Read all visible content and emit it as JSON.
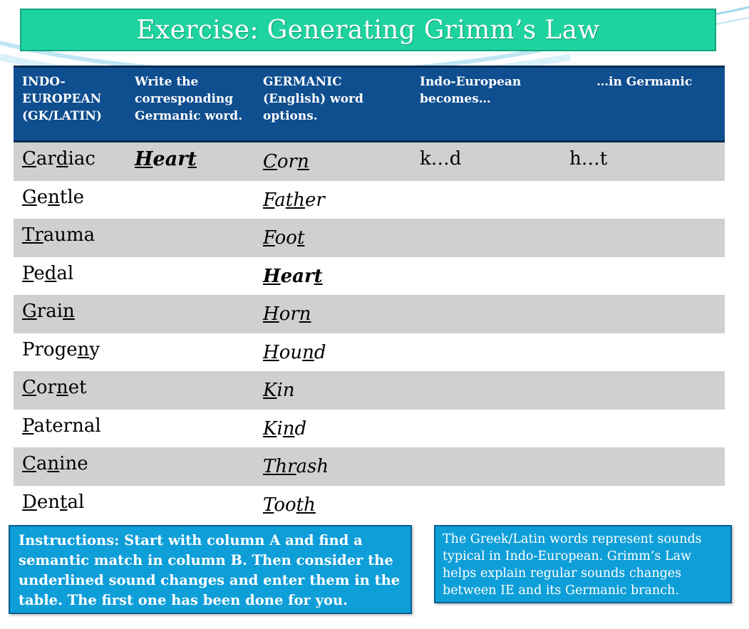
{
  "title": "Exercise: Generating Grimm’s Law",
  "headers": [
    "INDO-\nEUROPEAN\n(GK/LATIN)",
    "Write the\ncorresponding\nGermanic word.",
    "GERMANIC\n(English) word\noptions.",
    "Indo-European\nbecomes…",
    "…in Germanic"
  ],
  "rows": [
    {
      "ie": [
        [
          "C",
          1
        ],
        [
          "ar",
          0
        ],
        [
          "d",
          1
        ],
        [
          "iac",
          0
        ]
      ],
      "answer": [
        [
          "H",
          1
        ],
        [
          "ear",
          0
        ],
        [
          "t",
          1
        ]
      ],
      "option": [
        [
          "C",
          1
        ],
        [
          "or",
          0
        ],
        [
          "n",
          1
        ]
      ],
      "option_bold": false,
      "ie_becomes": "k…d",
      "in_germanic": "h…t"
    },
    {
      "ie": [
        [
          "G",
          1
        ],
        [
          "e",
          0
        ],
        [
          "n",
          1
        ],
        [
          "tle",
          0
        ]
      ],
      "answer": [],
      "option": [
        [
          "F",
          1
        ],
        [
          "a",
          0
        ],
        [
          "th",
          1
        ],
        [
          "er",
          0
        ]
      ],
      "option_bold": false,
      "ie_becomes": "",
      "in_germanic": ""
    },
    {
      "ie": [
        [
          "Tr",
          1
        ],
        [
          "auma",
          0
        ]
      ],
      "answer": [],
      "option": [
        [
          "F",
          1
        ],
        [
          "oo",
          0
        ],
        [
          "t",
          1
        ]
      ],
      "option_bold": false,
      "ie_becomes": "",
      "in_germanic": ""
    },
    {
      "ie": [
        [
          "P",
          1
        ],
        [
          "e",
          0
        ],
        [
          "d",
          1
        ],
        [
          "al",
          0
        ]
      ],
      "answer": [],
      "option": [
        [
          "H",
          1
        ],
        [
          "ear",
          0
        ],
        [
          "t",
          1
        ]
      ],
      "option_bold": true,
      "ie_becomes": "",
      "in_germanic": ""
    },
    {
      "ie": [
        [
          "G",
          1
        ],
        [
          "rai",
          0
        ],
        [
          "n",
          1
        ]
      ],
      "answer": [],
      "option": [
        [
          "H",
          1
        ],
        [
          "or",
          0
        ],
        [
          "n",
          1
        ]
      ],
      "option_bold": false,
      "ie_becomes": "",
      "in_germanic": ""
    },
    {
      "ie": [
        [
          "Proge",
          0
        ],
        [
          "n",
          1
        ],
        [
          "y",
          0
        ]
      ],
      "answer": [],
      "option": [
        [
          "H",
          1
        ],
        [
          "ou",
          0
        ],
        [
          "n",
          1
        ],
        [
          "d",
          0
        ]
      ],
      "option_bold": false,
      "ie_becomes": "",
      "in_germanic": ""
    },
    {
      "ie": [
        [
          "C",
          1
        ],
        [
          "or",
          0
        ],
        [
          "n",
          1
        ],
        [
          "et",
          0
        ]
      ],
      "answer": [],
      "option": [
        [
          "K",
          1
        ],
        [
          "in",
          0
        ]
      ],
      "option_bold": false,
      "ie_becomes": "",
      "in_germanic": ""
    },
    {
      "ie": [
        [
          "P",
          1
        ],
        [
          "aternal",
          0
        ]
      ],
      "answer": [],
      "option": [
        [
          "K",
          1
        ],
        [
          "i",
          0
        ],
        [
          "n",
          1
        ],
        [
          "d",
          0
        ]
      ],
      "option_bold": false,
      "ie_becomes": "",
      "in_germanic": ""
    },
    {
      "ie": [
        [
          "C",
          1
        ],
        [
          "a",
          0
        ],
        [
          "n",
          1
        ],
        [
          "ine",
          0
        ]
      ],
      "answer": [],
      "option": [
        [
          "Thr",
          1
        ],
        [
          "ash",
          0
        ]
      ],
      "option_bold": false,
      "ie_becomes": "",
      "in_germanic": ""
    },
    {
      "ie": [
        [
          "D",
          1
        ],
        [
          "en",
          0
        ],
        [
          "t",
          1
        ],
        [
          "al",
          0
        ]
      ],
      "answer": [],
      "option": [
        [
          "T",
          1
        ],
        [
          "oo",
          0
        ],
        [
          "th",
          1
        ]
      ],
      "option_bold": false,
      "ie_becomes": "",
      "in_germanic": ""
    }
  ],
  "instructions": "Instructions: Start with column A and find a semantic match in column B. Then consider the underlined sound changes and enter them in the table. The first one has been done for you.",
  "note": "The Greek/Latin words represent sounds typical in Indo-European. Grimm’s Law helps explain regular sounds changes between IE and its Germanic branch.",
  "colors": {
    "title_bg": "#1ed3a0",
    "header_bg": "#0f4e8f",
    "row_shade": "#d0d0d0",
    "box_bg": "#0e9ed8"
  }
}
